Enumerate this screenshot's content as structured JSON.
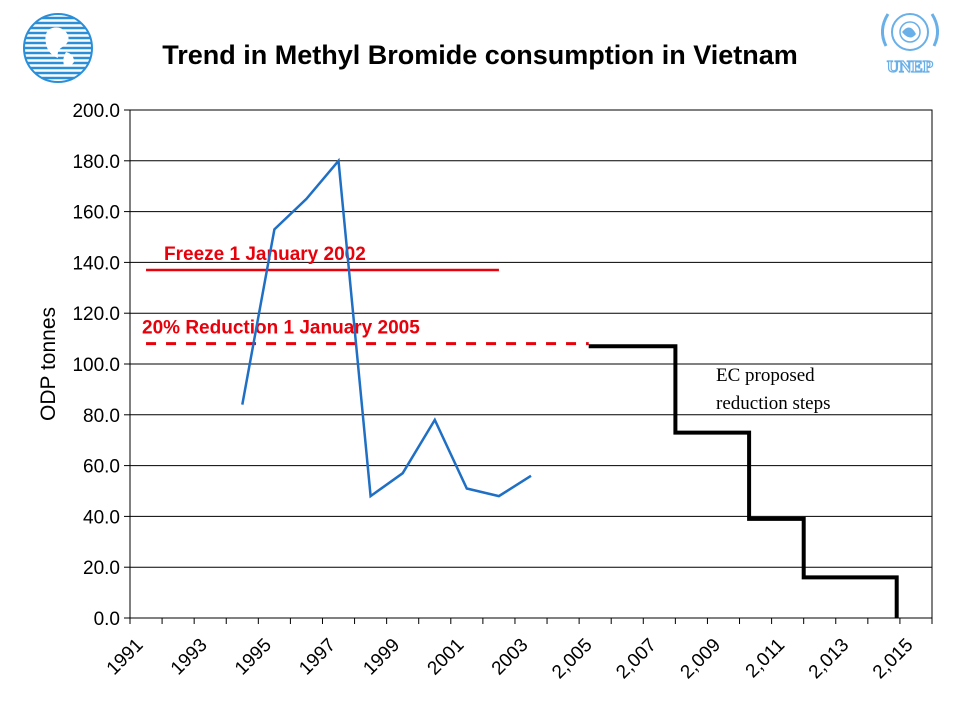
{
  "slide": {
    "title": "Trend in Methyl Bromide consumption in Vietnam"
  },
  "logos": {
    "left_icon": "globe-logo-icon",
    "right_icon": "unep-logo-icon",
    "right_text": "UNEP",
    "left_color": "#2a8fd8",
    "right_color": "#6ab0e8"
  },
  "chart_data": {
    "type": "line",
    "title": "Trend in Methyl Bromide consumption in Vietnam",
    "xlabel": "",
    "ylabel": "ODP tonnes",
    "ylim": [
      0,
      200
    ],
    "yticks": [
      "0.0",
      "20.0",
      "40.0",
      "60.0",
      "80.0",
      "100.0",
      "120.0",
      "140.0",
      "160.0",
      "180.0",
      "200.0"
    ],
    "xlim": [
      1991,
      2016
    ],
    "xticks": [
      "1991",
      "1993",
      "1995",
      "1997",
      "1999",
      "2001",
      "2003",
      "2,005",
      "2,007",
      "2,009",
      "2,011",
      "2,013",
      "2,015"
    ],
    "grid": true,
    "series": [
      {
        "color": "#1f6fc5",
        "points": [
          [
            1994.5,
            84
          ],
          [
            1995.5,
            153
          ],
          [
            1996.5,
            165
          ],
          [
            1997.5,
            180
          ],
          [
            1998.5,
            48
          ],
          [
            1999.5,
            57
          ],
          [
            2000.5,
            78
          ],
          [
            2001.5,
            51
          ],
          [
            2002.5,
            48
          ],
          [
            2003.5,
            56
          ]
        ]
      },
      {
        "color": "#000000",
        "style": "step",
        "points": [
          [
            2005.3,
            107
          ],
          [
            2008,
            107
          ],
          [
            2008,
            73
          ],
          [
            2010.3,
            73
          ],
          [
            2010.3,
            39
          ],
          [
            2012,
            39
          ],
          [
            2012,
            16
          ],
          [
            2014.9,
            16
          ],
          [
            2014.9,
            0
          ]
        ]
      }
    ],
    "reference_lines": [
      {
        "label": "Freeze 1 January 2002",
        "y": 137,
        "x_start": 1991.5,
        "x_end": 2002.5,
        "style": "solid",
        "color": "#e8000b"
      },
      {
        "label": "20% Reduction 1 January 2005",
        "y": 108,
        "x_start": 1991.5,
        "x_end": 2005.3,
        "style": "dashed",
        "color": "#e8000b"
      }
    ],
    "annotations": [
      {
        "lines": [
          "EC proposed",
          "reduction steps"
        ]
      }
    ]
  }
}
